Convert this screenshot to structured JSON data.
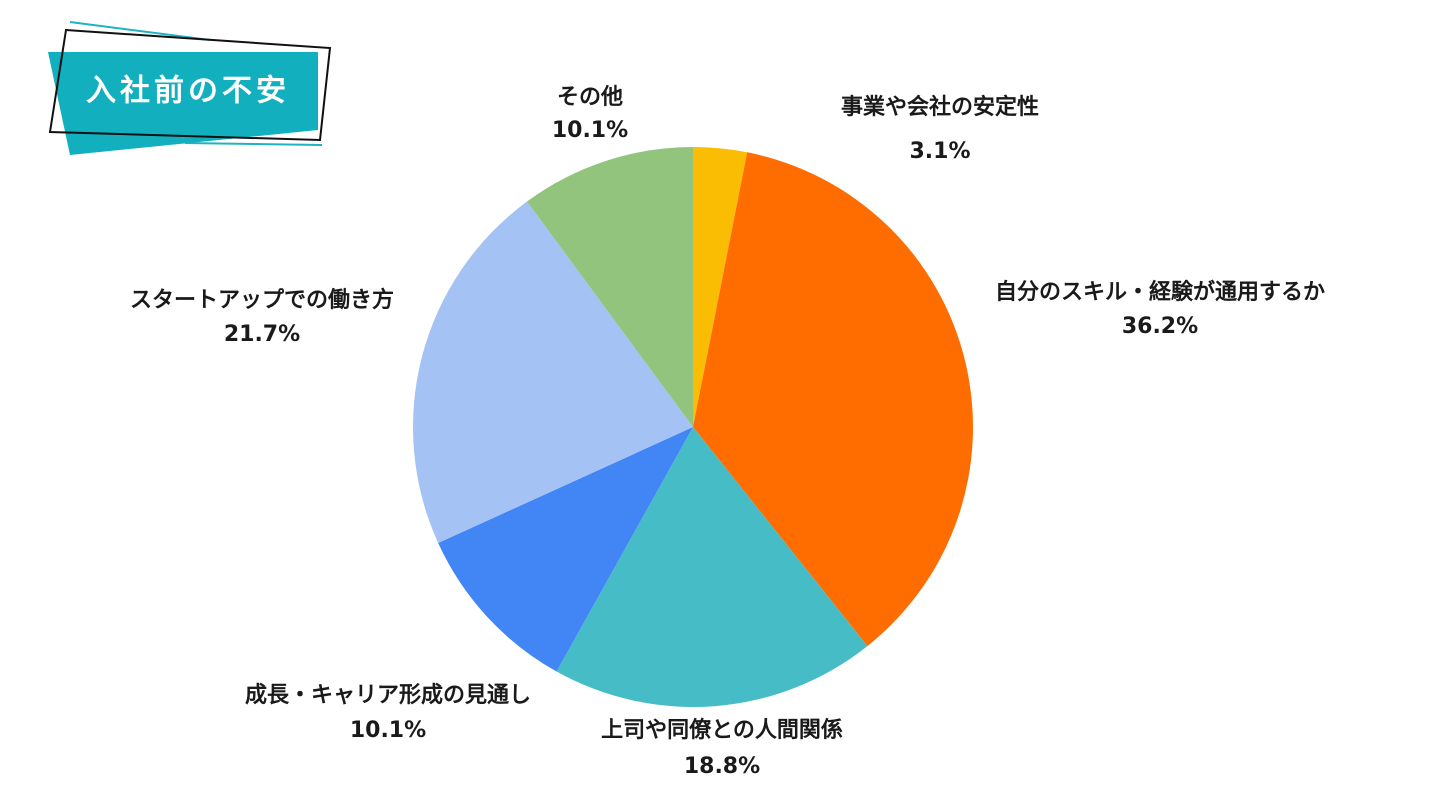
{
  "chart_data": {
    "type": "pie",
    "title": "入社前の不安",
    "categories": [
      "事業や会社の安定性",
      "自分のスキル・経験が通用するか",
      "上司や同僚との人間関係",
      "成長・キャリア形成の見通し",
      "スタートアップでの働き方",
      "その他"
    ],
    "values": [
      3.1,
      36.2,
      18.8,
      10.1,
      21.7,
      10.1
    ],
    "value_labels": [
      "3.1%",
      "36.2%",
      "18.8%",
      "10.1%",
      "21.7%",
      "10.1%"
    ],
    "colors": [
      "#fbbc04",
      "#ff6d01",
      "#46bdc6",
      "#4285f4",
      "#a4c2f4",
      "#93c47d"
    ]
  }
}
